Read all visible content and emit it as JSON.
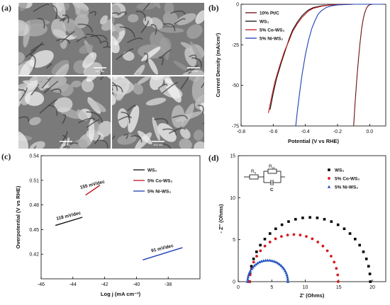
{
  "panels": {
    "a": "(a)",
    "b": "(b)",
    "c": "(c)",
    "d": "(d)"
  },
  "sem": {
    "scale_labels": [
      "100 nm",
      "100 nm",
      "100 nm",
      "100 nm"
    ]
  },
  "chart_data": [
    {
      "panel": "b",
      "type": "line",
      "xlabel": "Potential (V vs RHE)",
      "ylabel": "Current Density (mA/cm²)",
      "xlim": [
        -0.8,
        0.1
      ],
      "ylim": [
        -75,
        0
      ],
      "xticks": [
        "-0.8",
        "-0.6",
        "-0.4",
        "-0.2",
        "0.0"
      ],
      "yticks": [
        "0",
        "-25",
        "-50",
        "-75"
      ],
      "legend_position": "top-left",
      "series": [
        {
          "name": "10% Pt/C",
          "color": "#6b0e10",
          "x": [
            -0.1,
            -0.09,
            -0.08,
            -0.07,
            -0.06,
            -0.05,
            -0.04,
            -0.03,
            -0.02,
            -0.01,
            0.0,
            0.02,
            0.05,
            0.08
          ],
          "y": [
            -75,
            -60,
            -46,
            -34,
            -24,
            -15,
            -9,
            -5,
            -2.5,
            -1,
            -0.3,
            0,
            0,
            0
          ]
        },
        {
          "name": "WS₂",
          "color": "#111111",
          "x": [
            -0.62,
            -0.6,
            -0.58,
            -0.55,
            -0.52,
            -0.5,
            -0.48,
            -0.45,
            -0.42,
            -0.4,
            -0.38,
            -0.35,
            -0.3,
            -0.25,
            -0.2,
            -0.1,
            0.0,
            0.08
          ],
          "y": [
            -65,
            -55,
            -46,
            -36,
            -27,
            -21,
            -16,
            -11,
            -7,
            -5,
            -3.5,
            -2,
            -1,
            -0.5,
            -0.2,
            0,
            0,
            0
          ]
        },
        {
          "name": "5% Co-WS₂",
          "color": "#c0181c",
          "x": [
            -0.63,
            -0.61,
            -0.59,
            -0.56,
            -0.53,
            -0.5,
            -0.48,
            -0.45,
            -0.42,
            -0.4,
            -0.38,
            -0.35,
            -0.3,
            -0.25,
            -0.2,
            -0.1,
            0.0,
            0.08
          ],
          "y": [
            -67,
            -57,
            -48,
            -38,
            -29,
            -22,
            -17,
            -12,
            -8,
            -6,
            -4,
            -2.5,
            -1.2,
            -0.5,
            -0.2,
            0,
            0,
            0
          ]
        },
        {
          "name": "5% Ni-WS₂",
          "color": "#1f3fb4",
          "x": [
            -0.46,
            -0.45,
            -0.44,
            -0.43,
            -0.42,
            -0.41,
            -0.4,
            -0.38,
            -0.36,
            -0.34,
            -0.32,
            -0.3,
            -0.27,
            -0.24,
            -0.2,
            -0.1,
            0.0,
            0.08
          ],
          "y": [
            -75,
            -66,
            -58,
            -50,
            -43,
            -37,
            -31,
            -22,
            -15,
            -10,
            -6,
            -4,
            -2,
            -1,
            -0.4,
            0,
            0,
            0
          ]
        }
      ]
    },
    {
      "panel": "c",
      "type": "line",
      "xlabel": "Log j (mA cm⁻²)",
      "ylabel": "Overpotential (V vs RHE)",
      "xlim": [
        -46,
        -36
      ],
      "ylim": [
        0.39,
        0.54
      ],
      "xticks": [
        "-46",
        "-44",
        "-42",
        "-40",
        "-38"
      ],
      "yticks": [
        "0.54",
        "0.51",
        "0.48",
        "0.45",
        "0.42"
      ],
      "legend_position": "top-right",
      "series": [
        {
          "name": "WS₂",
          "color": "#111111",
          "x": [
            -45.1,
            -43.4
          ],
          "y": [
            0.455,
            0.465
          ],
          "annotation": "118 mV/dec"
        },
        {
          "name": "5% Co-WS₂",
          "color": "#c0181c",
          "x": [
            -43.2,
            -42.3
          ],
          "y": [
            0.492,
            0.504
          ],
          "annotation": "155 mV/dec"
        },
        {
          "name": "5% Ni-WS₂",
          "color": "#1f3fb4",
          "x": [
            -39.6,
            -37.1
          ],
          "y": [
            0.413,
            0.428
          ],
          "annotation": "91 mV/dec"
        }
      ]
    },
    {
      "panel": "d",
      "type": "scatter",
      "xlabel": "Z' (Ohms)",
      "ylabel": "- Z'' (Ohms)",
      "xlim": [
        0,
        22
      ],
      "ylim": [
        0,
        15
      ],
      "xticks": [
        "0",
        "5",
        "10",
        "15",
        "20"
      ],
      "yticks": [
        "0",
        "5",
        "10",
        "15"
      ],
      "legend_position": "top-right",
      "circuit_labels": {
        "rs": "R",
        "rs_sub": "s",
        "rct": "R",
        "rct_sub": "ct",
        "c": "C"
      },
      "series": [
        {
          "name": "WS₂",
          "marker": "square",
          "color": "#000000",
          "center": 10.7,
          "radius": 9.0,
          "offset": 1.2,
          "points": 26
        },
        {
          "name": "5% Co-WS₂",
          "marker": "circle",
          "color": "#d7191c",
          "center": 8.3,
          "radius": 6.6,
          "offset": 1.2,
          "points": 22
        },
        {
          "name": "5% Ni-WS₂",
          "marker": "triangle",
          "color": "#1f4fbf",
          "center": 4.4,
          "radius": 3.0,
          "offset": 1.2,
          "points": 30
        }
      ]
    }
  ]
}
